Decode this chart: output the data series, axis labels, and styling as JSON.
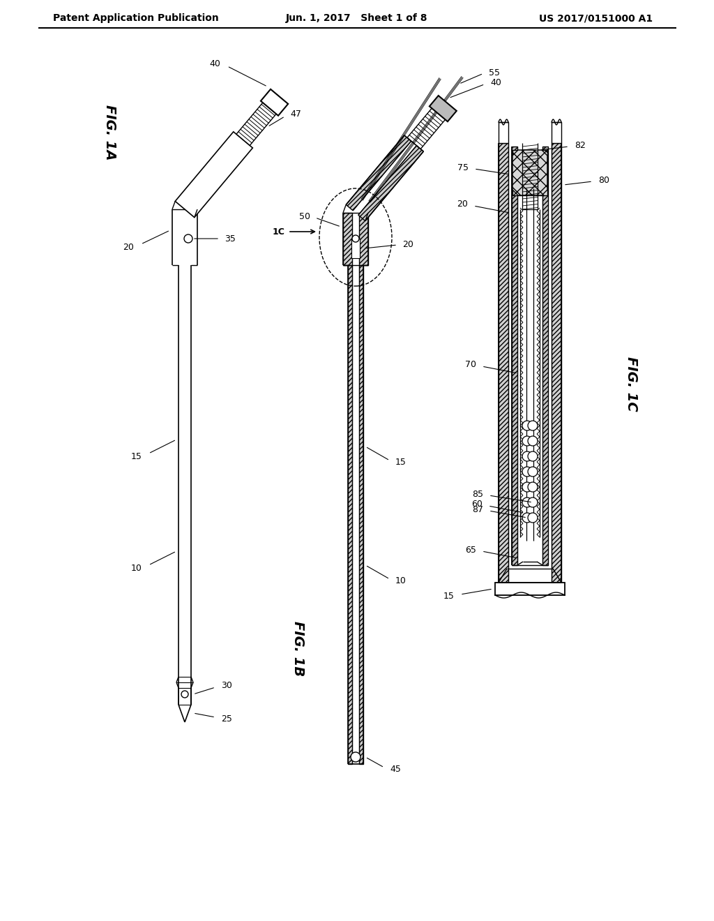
{
  "bg_color": "#ffffff",
  "header_left": "Patent Application Publication",
  "header_center": "Jun. 1, 2017   Sheet 1 of 8",
  "header_right": "US 2017/0151000 A1",
  "lc": "#000000",
  "lw": 1.0,
  "fig1a_label": "FIG. 1A",
  "fig1b_label": "FIG. 1B",
  "fig1c_label": "FIG. 1C"
}
